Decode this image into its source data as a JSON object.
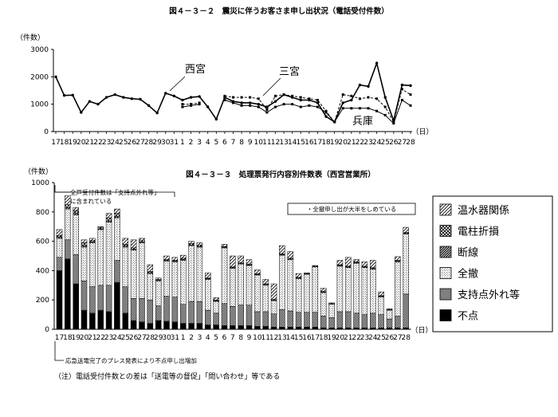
{
  "chart_data": [
    {
      "type": "line",
      "title": "図４－３－２　震災に伴うお客さま申し出状況（電話受付件数）",
      "ylabel": "（件数）",
      "xunit": "（日）",
      "ylim": [
        0,
        3000
      ],
      "yticks": [
        0,
        1000,
        2000,
        3000
      ],
      "categories": [
        "17",
        "18",
        "19",
        "20",
        "21",
        "22",
        "23",
        "24",
        "25",
        "26",
        "27",
        "28",
        "29",
        "30",
        "31",
        "1",
        "2",
        "3",
        "4",
        "5",
        "6",
        "7",
        "8",
        "9",
        "10",
        "11",
        "12",
        "13",
        "14",
        "15",
        "16",
        "17",
        "18",
        "19",
        "20",
        "21",
        "22",
        "23",
        "24",
        "25",
        "26",
        "27",
        "28"
      ],
      "series": [
        {
          "name": "西宮",
          "values": [
            2000,
            1320,
            1330,
            700,
            1100,
            1000,
            1250,
            1350,
            1250,
            1200,
            1180,
            950,
            680,
            1400,
            1300,
            1150,
            1250,
            1280,
            900,
            450,
            1250,
            1100,
            1050,
            1050,
            1000,
            900,
            1100,
            1350,
            1250,
            1150,
            1150,
            1050,
            550,
            350,
            1050,
            1150,
            1700,
            1650,
            2500,
            1250,
            400,
            1700,
            1680
          ]
        },
        {
          "name": "三宮",
          "values": [
            null,
            null,
            null,
            null,
            null,
            null,
            null,
            null,
            null,
            null,
            null,
            null,
            null,
            null,
            null,
            1000,
            1000,
            1050,
            null,
            null,
            1300,
            1250,
            1250,
            1250,
            1200,
            800,
            1300,
            1350,
            1300,
            1250,
            1200,
            1150,
            750,
            350,
            1350,
            1300,
            1200,
            1250,
            1200,
            900,
            350,
            1550,
            1350
          ]
        },
        {
          "name": "兵庫",
          "values": [
            null,
            null,
            null,
            null,
            null,
            null,
            null,
            null,
            null,
            null,
            null,
            null,
            null,
            null,
            null,
            900,
            950,
            1000,
            null,
            null,
            1150,
            1050,
            950,
            950,
            900,
            700,
            900,
            1000,
            1000,
            900,
            950,
            900,
            700,
            350,
            850,
            850,
            850,
            850,
            750,
            600,
            300,
            1150,
            950
          ]
        }
      ]
    },
    {
      "type": "bar",
      "stacked": true,
      "title": "図４－３－３　処理票発行内容別件数表（西宮営業所）",
      "ylabel": "（件数）",
      "xunit": "（日）",
      "ylim": [
        0,
        1000
      ],
      "yticks": [
        0,
        200,
        400,
        600,
        800,
        1000
      ],
      "categories": [
        "17",
        "18",
        "19",
        "20",
        "21",
        "22",
        "23",
        "24",
        "25",
        "26",
        "27",
        "28",
        "29",
        "30",
        "31",
        "1",
        "2",
        "3",
        "4",
        "5",
        "6",
        "7",
        "8",
        "9",
        "10",
        "11",
        "12",
        "13",
        "14",
        "15",
        "16",
        "17",
        "18",
        "19",
        "20",
        "21",
        "22",
        "23",
        "24",
        "25",
        "26",
        "27",
        "28"
      ],
      "series": [
        {
          "name": "不点",
          "values": [
            400,
            480,
            310,
            130,
            110,
            130,
            120,
            320,
            110,
            60,
            50,
            40,
            60,
            55,
            50,
            40,
            40,
            40,
            30,
            30,
            25,
            25,
            25,
            25,
            20,
            20,
            15,
            15,
            15,
            15,
            15,
            15,
            10,
            10,
            10,
            10,
            10,
            10,
            10,
            10,
            10,
            10,
            10
          ]
        },
        {
          "name": "支持点外れ等",
          "values": [
            90,
            130,
            200,
            200,
            180,
            170,
            180,
            150,
            180,
            150,
            160,
            160,
            100,
            170,
            170,
            130,
            150,
            150,
            100,
            80,
            150,
            130,
            140,
            140,
            100,
            100,
            90,
            120,
            110,
            100,
            100,
            100,
            80,
            70,
            110,
            110,
            100,
            90,
            100,
            90,
            60,
            80,
            230
          ]
        },
        {
          "name": "全撤",
          "values": [
            130,
            210,
            270,
            230,
            300,
            380,
            430,
            290,
            270,
            330,
            380,
            180,
            170,
            240,
            240,
            300,
            380,
            370,
            210,
            80,
            380,
            260,
            280,
            270,
            250,
            180,
            90,
            370,
            350,
            230,
            260,
            310,
            160,
            90,
            310,
            300,
            340,
            320,
            300,
            120,
            60,
            370,
            410
          ]
        },
        {
          "name": "断線",
          "values": [
            10,
            10,
            10,
            10,
            5,
            5,
            10,
            10,
            10,
            5,
            5,
            5,
            5,
            5,
            5,
            5,
            5,
            5,
            5,
            5,
            5,
            5,
            5,
            5,
            5,
            5,
            5,
            5,
            5,
            5,
            5,
            5,
            5,
            5,
            5,
            5,
            5,
            5,
            5,
            5,
            5,
            5,
            5
          ]
        },
        {
          "name": "電柱折損",
          "values": [
            10,
            20,
            20,
            20,
            10,
            10,
            20,
            20,
            10,
            10,
            10,
            10,
            5,
            5,
            5,
            10,
            10,
            10,
            5,
            5,
            5,
            5,
            5,
            5,
            5,
            5,
            5,
            5,
            5,
            5,
            5,
            5,
            5,
            5,
            5,
            5,
            5,
            5,
            5,
            5,
            5,
            5,
            5
          ]
        },
        {
          "name": "温水器関係",
          "values": [
            40,
            60,
            20,
            20,
            15,
            5,
            30,
            30,
            40,
            55,
            15,
            45,
            10,
            25,
            20,
            20,
            15,
            15,
            35,
            15,
            15,
            75,
            45,
            30,
            25,
            30,
            105,
            55,
            45,
            25,
            0,
            0,
            20,
            0,
            30,
            60,
            15,
            30,
            50,
            25,
            0,
            25,
            35
          ]
        }
      ],
      "annotations": {
        "note_box": "・全撤申し出が大半をしめている",
        "bracket_line1": "全戸受付件数は「支持点外れ等」",
        "bracket_line2": "に含まれている",
        "bottom_note": "応急送電完了のプレス発表により不点申し出増加"
      },
      "legend": {
        "position": "right",
        "order": [
          "温水器関係",
          "電柱折損",
          "断線",
          "全撤",
          "支持点外れ等",
          "不点"
        ]
      }
    }
  ],
  "footnote": "（注）電話受付件数との差は「送電等の督促」「問い合わせ」等である"
}
